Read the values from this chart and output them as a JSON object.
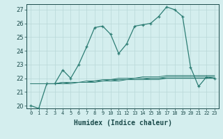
{
  "xlabel": "Humidex (Indice chaleur)",
  "x_values": [
    0,
    1,
    2,
    3,
    4,
    5,
    6,
    7,
    8,
    9,
    10,
    11,
    12,
    13,
    14,
    15,
    16,
    17,
    18,
    19,
    20,
    21,
    22,
    23
  ],
  "series": {
    "main": [
      20.0,
      19.8,
      21.6,
      21.6,
      22.6,
      22.0,
      23.0,
      24.3,
      25.7,
      25.8,
      25.2,
      23.8,
      24.5,
      25.8,
      25.9,
      26.0,
      26.5,
      27.2,
      27.0,
      26.5,
      22.8,
      21.4,
      22.1,
      22.0
    ],
    "line1": [
      21.6,
      21.6,
      21.6,
      21.6,
      21.7,
      21.7,
      21.7,
      21.8,
      21.8,
      21.9,
      21.9,
      22.0,
      22.0,
      22.0,
      22.1,
      22.1,
      22.1,
      22.2,
      22.2,
      22.2,
      22.2,
      22.2,
      22.2,
      22.2
    ],
    "line2": [
      21.6,
      21.6,
      21.6,
      21.6,
      21.7,
      21.7,
      21.7,
      21.7,
      21.8,
      21.8,
      21.9,
      21.9,
      21.9,
      22.0,
      22.0,
      22.0,
      22.0,
      22.1,
      22.1,
      22.1,
      22.1,
      22.1,
      22.1,
      22.1
    ],
    "line3": [
      21.6,
      21.6,
      21.6,
      21.6,
      21.6,
      21.7,
      21.7,
      21.7,
      21.8,
      21.8,
      21.8,
      21.9,
      21.9,
      21.9,
      21.9,
      22.0,
      22.0,
      22.0,
      22.0,
      22.0,
      22.0,
      22.0,
      22.0,
      22.0
    ],
    "line4": [
      21.6,
      21.6,
      21.6,
      21.6,
      21.6,
      21.6,
      21.7,
      21.7,
      21.7,
      21.8,
      21.8,
      21.8,
      21.9,
      21.9,
      21.9,
      21.9,
      21.9,
      22.0,
      22.0,
      22.0,
      22.0,
      22.0,
      22.0,
      22.0
    ]
  },
  "line_color": "#2d7d74",
  "bg_color": "#d4eeee",
  "grid_color": "#b8d8d8",
  "ylim": [
    19.8,
    27.4
  ],
  "yticks": [
    20,
    21,
    22,
    23,
    24,
    25,
    26,
    27
  ],
  "xticks": [
    0,
    1,
    2,
    3,
    4,
    5,
    6,
    7,
    8,
    9,
    10,
    11,
    12,
    13,
    14,
    15,
    16,
    17,
    18,
    19,
    20,
    21,
    22,
    23
  ]
}
